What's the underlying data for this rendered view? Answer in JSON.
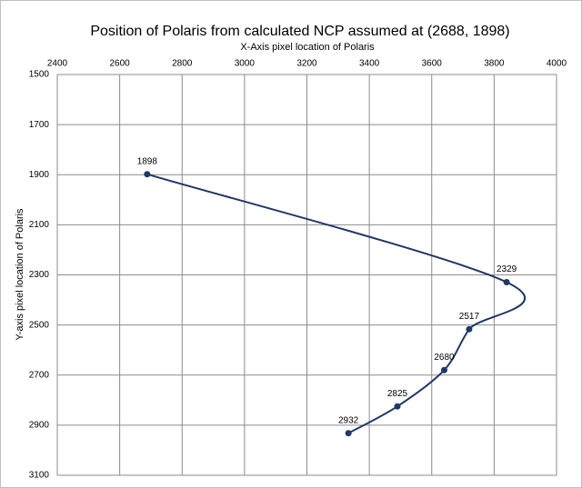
{
  "chart_data": {
    "type": "line",
    "title": "Position of Polaris from calculated NCP assumed at (2688, 1898)",
    "x_label": "X-Axis pixel location of Polaris",
    "y_label": "Y-axis pixel location of Polaris",
    "x": [
      2688,
      3840,
      3720,
      3640,
      3490,
      3333
    ],
    "values": [
      1898,
      2329,
      2517,
      2680,
      2825,
      2932
    ],
    "color": "#1f3864",
    "xlim": [
      2400,
      4000
    ],
    "xticks": [
      2400,
      2600,
      2800,
      3000,
      3200,
      3400,
      3600,
      3800,
      4000
    ],
    "ylim": [
      1500,
      3100
    ],
    "yticks": [
      1500,
      1700,
      1900,
      2100,
      2300,
      2500,
      2700,
      2900,
      3100
    ],
    "y_inverted": true,
    "x_axis_top": true,
    "smooth": true,
    "grid": true
  }
}
